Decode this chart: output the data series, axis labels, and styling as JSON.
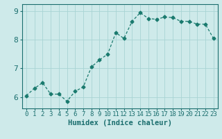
{
  "x": [
    0,
    1,
    2,
    3,
    4,
    5,
    6,
    7,
    8,
    9,
    10,
    11,
    12,
    13,
    14,
    15,
    16,
    17,
    18,
    19,
    20,
    21,
    22,
    23
  ],
  "y": [
    6.05,
    6.3,
    6.5,
    6.1,
    6.1,
    5.85,
    6.2,
    6.35,
    7.05,
    7.3,
    7.5,
    8.25,
    8.05,
    8.65,
    8.95,
    8.75,
    8.72,
    8.8,
    8.78,
    8.65,
    8.65,
    8.55,
    8.55,
    8.05
  ],
  "line_color": "#1a7a6e",
  "marker": "D",
  "marker_size": 2.5,
  "bg_color": "#ceeaea",
  "grid_color": "#a8d4d4",
  "xlabel": "Humidex (Indice chaleur)",
  "ylabel": "",
  "xlim": [
    -0.5,
    23.5
  ],
  "ylim": [
    5.6,
    9.25
  ],
  "yticks": [
    6,
    7,
    8,
    9
  ],
  "xtick_labels": [
    "0",
    "1",
    "2",
    "3",
    "4",
    "5",
    "6",
    "7",
    "8",
    "9",
    "10",
    "11",
    "12",
    "13",
    "14",
    "15",
    "16",
    "17",
    "18",
    "19",
    "20",
    "21",
    "22",
    "23"
  ],
  "tick_color": "#1a6e6e",
  "xlabel_fontsize": 7.5,
  "tick_fontsize": 6.5,
  "ytick_fontsize": 8
}
